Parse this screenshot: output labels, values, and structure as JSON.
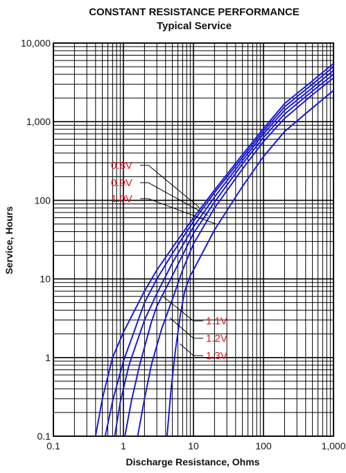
{
  "chart_data": {
    "type": "line",
    "title": "CONSTANT RESISTANCE PERFORMANCE",
    "subtitle": "Typical Service",
    "xlabel": "Discharge Resistance, Ohms",
    "ylabel": "Service, Hours",
    "x_scale": "log",
    "y_scale": "log",
    "xlim": [
      0.1,
      1000
    ],
    "ylim": [
      0.1,
      10000
    ],
    "x_ticks": [
      "0.1",
      "1",
      "10",
      "100",
      "1,000"
    ],
    "y_ticks": [
      "0.1",
      "1",
      "10",
      "100",
      "1,000",
      "10,000"
    ],
    "grid": true,
    "line_color": "#1a1ad6",
    "label_color": "#e8141c",
    "series": [
      {
        "name": "0.8V",
        "x": [
          0.4,
          0.5,
          0.7,
          1,
          2,
          3,
          5,
          10,
          20,
          50,
          100,
          200,
          500,
          1000
        ],
        "y": [
          0.1,
          0.3,
          1,
          2.1,
          7,
          13,
          25,
          60,
          135,
          380,
          820,
          1700,
          3300,
          5500
        ]
      },
      {
        "name": "0.9V",
        "x": [
          0.55,
          0.7,
          1,
          2,
          3,
          5,
          10,
          20,
          50,
          100,
          200,
          500,
          1000
        ],
        "y": [
          0.1,
          0.28,
          0.9,
          5,
          10,
          21,
          54,
          125,
          350,
          760,
          1550,
          3000,
          5000
        ]
      },
      {
        "name": "1.0V",
        "x": [
          0.75,
          0.9,
          1.2,
          2,
          3,
          5,
          10,
          20,
          50,
          100,
          200,
          500,
          1000
        ],
        "y": [
          0.1,
          0.27,
          0.8,
          3,
          6.5,
          16,
          46,
          110,
          320,
          700,
          1400,
          2700,
          4500
        ]
      },
      {
        "name": "1.1V",
        "x": [
          1.05,
          1.3,
          1.7,
          2.5,
          3,
          5,
          10,
          20,
          50,
          100,
          200,
          500,
          1000
        ],
        "y": [
          0.1,
          0.28,
          0.8,
          2.8,
          4.5,
          11,
          38,
          95,
          290,
          630,
          1250,
          2450,
          4000
        ]
      },
      {
        "name": "1.2V",
        "x": [
          1.6,
          2,
          2.5,
          3.5,
          5,
          7,
          10,
          20,
          50,
          100,
          200,
          500,
          1000
        ],
        "y": [
          0.1,
          0.3,
          0.8,
          2.3,
          5.5,
          13,
          28,
          80,
          250,
          560,
          1100,
          2200,
          3600
        ]
      },
      {
        "name": "1.3V",
        "x": [
          4.2,
          4.8,
          5.5,
          6.5,
          7.5,
          9,
          10,
          20,
          50,
          100,
          200,
          500,
          1000
        ],
        "y": [
          0.1,
          0.4,
          1.2,
          3.5,
          7,
          11,
          13,
          42,
          150,
          360,
          750,
          1500,
          2500
        ]
      }
    ]
  }
}
